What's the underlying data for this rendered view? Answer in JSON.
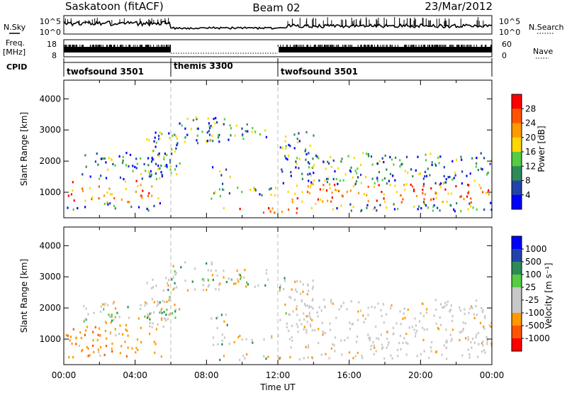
{
  "header": {
    "station": "Saskatoon (fitACF)",
    "beam": "Beam 02",
    "date": "23/Mar/2012"
  },
  "side_labels": {
    "nsky": "N.Sky",
    "freq": "Freq.",
    "freq_unit": "[MHz]",
    "cpid": "CPID",
    "nsearch": "N.Search",
    "nave": "Nave"
  },
  "strip_ticks": {
    "noise_left_top": "10^5",
    "noise_left_bottom": "10^0",
    "noise_right_top": "10^5",
    "noise_right_bottom": "10^0",
    "freq_top": "18",
    "freq_bottom": "8",
    "nave_top": "60",
    "nave_bottom": "0"
  },
  "cpid_segments": [
    {
      "label": "twofsound 3501",
      "start_hr": 0,
      "end_hr": 6
    },
    {
      "label": "themis 3300",
      "start_hr": 6,
      "end_hr": 12
    },
    {
      "label": "twofsound 3501",
      "start_hr": 12,
      "end_hr": 24
    }
  ],
  "colors": {
    "power": [
      "#0000ff",
      "#2244aa",
      "#2e8b57",
      "#55cc44",
      "#ffd700",
      "#ff9900",
      "#ff5500",
      "#ff0000"
    ],
    "velocity": [
      "#ff0000",
      "#ff5500",
      "#ff9900",
      "#c8c8c8",
      "#c8c8c8",
      "#55cc44",
      "#2e8b57",
      "#2244aa",
      "#0000ff"
    ],
    "ground_scatter": "#c8c8c8"
  },
  "chart_data": [
    {
      "type": "heatmap",
      "ylabel": "Slant Range [km]",
      "ylim": [
        180,
        4600
      ],
      "yticks": [
        "1000",
        "2000",
        "3000",
        "4000"
      ],
      "colorbar": {
        "label": "Power [dB]",
        "ticks": [
          "4",
          "8",
          "12",
          "16",
          "20",
          "24",
          "28"
        ],
        "range": [
          0,
          32
        ]
      }
    },
    {
      "type": "heatmap",
      "ylabel": "Slant Range [km]",
      "xlabel": "Time UT",
      "ylim": [
        180,
        4600
      ],
      "yticks": [
        "1000",
        "2000",
        "3000",
        "4000"
      ],
      "xticks": [
        "00:00",
        "04:00",
        "08:00",
        "12:00",
        "16:00",
        "20:00",
        "00:00"
      ],
      "xlim": [
        0,
        24
      ],
      "colorbar": {
        "label": "Velocity [m s⁻¹]",
        "ticks": [
          "1000",
          "500",
          "100",
          "25",
          "-25",
          "-100",
          "-500",
          "-1000"
        ]
      }
    }
  ]
}
